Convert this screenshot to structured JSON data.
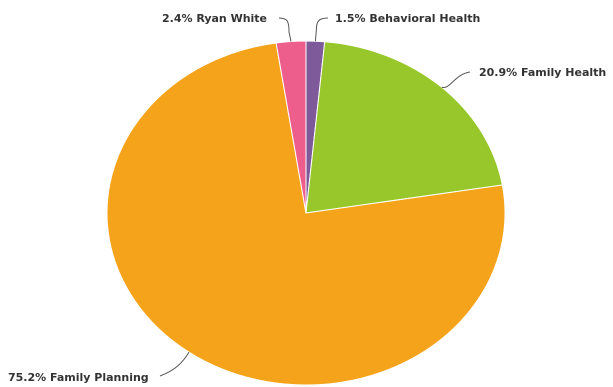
{
  "chart_data": {
    "type": "pie",
    "title": "",
    "slices": [
      {
        "label": "1.5% Behavioral Health",
        "name": "Behavioral Health",
        "value": 1.5,
        "color": "#7e5a9b"
      },
      {
        "label": "20.9% Family Health",
        "name": "Family Health",
        "value": 20.9,
        "color": "#97c72a"
      },
      {
        "label": "75.2% Family Planning",
        "name": "Family Planning",
        "value": 75.2,
        "color": "#f5a31a"
      },
      {
        "label": "2.4% Ryan White",
        "name": "Ryan White",
        "value": 2.4,
        "color": "#ee5e8c"
      }
    ],
    "start_angle_deg": 0,
    "direction": "clockwise",
    "legend": "none",
    "data_labels": "outside with connector lines"
  }
}
